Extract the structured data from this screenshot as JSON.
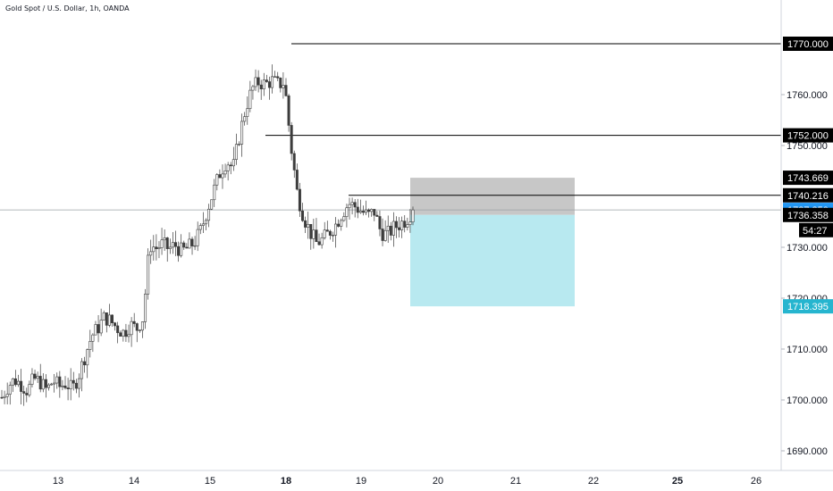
{
  "chart_data": {
    "type": "candlestick",
    "title": "Gold Spot / U.S. Dollar, 1h, OANDA",
    "x_tick_labels": [
      "13",
      "14",
      "15",
      "18",
      "19",
      "20",
      "21",
      "22",
      "25",
      "26"
    ],
    "y_tick_labels": [
      "1690.000",
      "1700.000",
      "1710.000",
      "1720.000",
      "1730.000",
      "1750.000",
      "1760.000"
    ],
    "ylim": [
      1687.5,
      1778.5
    ],
    "grid": false,
    "price_series": [
      1700.5,
      1702.8,
      1704.0,
      1703.1,
      1701.8,
      1704.2,
      1703.5,
      1701.9,
      1703.8,
      1702.6,
      1703.3,
      1702.0,
      1705.0,
      1708.9,
      1712.6,
      1714.2,
      1716.3,
      1715.4,
      1714.1,
      1713.2,
      1714.8,
      1714.0,
      1716.2,
      1730.5,
      1729.8,
      1730.6,
      1729.7,
      1730.4,
      1729.2,
      1729.9,
      1731.0,
      1733.4,
      1737.5,
      1741.2,
      1744.8,
      1747.0,
      1745.5,
      1752.0,
      1757.5,
      1761.2,
      1762.5,
      1762.0,
      1762.8,
      1762.0,
      1762.4,
      1750.0,
      1740.5,
      1736.0,
      1733.0,
      1730.8,
      1731.6,
      1733.0,
      1734.5,
      1736.8,
      1738.6,
      1738.0,
      1737.1,
      1736.2,
      1737.0,
      1733.0,
      1732.5,
      1733.8,
      1734.6,
      1735.5,
      1737.35
    ],
    "last_price": "1737.350",
    "countdown": "54:27",
    "horizontal_levels": [
      {
        "price": 1770.0,
        "label": "1770.000"
      },
      {
        "price": 1752.0,
        "label": "1752.000"
      },
      {
        "price": 1740.216,
        "label": "1740.216"
      }
    ],
    "position": {
      "type": "short",
      "stop": 1743.669,
      "entry": 1736.358,
      "target": 1718.395,
      "stop_label": "1743.669",
      "entry_label": "1736.358",
      "target_label": "1718.395",
      "risk_color": "#c4c4c4",
      "reward_color": "#b8e9f0"
    },
    "colors": {
      "candle_up": "#ffffff",
      "candle_down": "#3c3c3c",
      "wick": "#3c3c3c",
      "last_price_tag": "#2196f3",
      "label_tag": "#000000",
      "target_tag": "#26b5cf"
    }
  }
}
